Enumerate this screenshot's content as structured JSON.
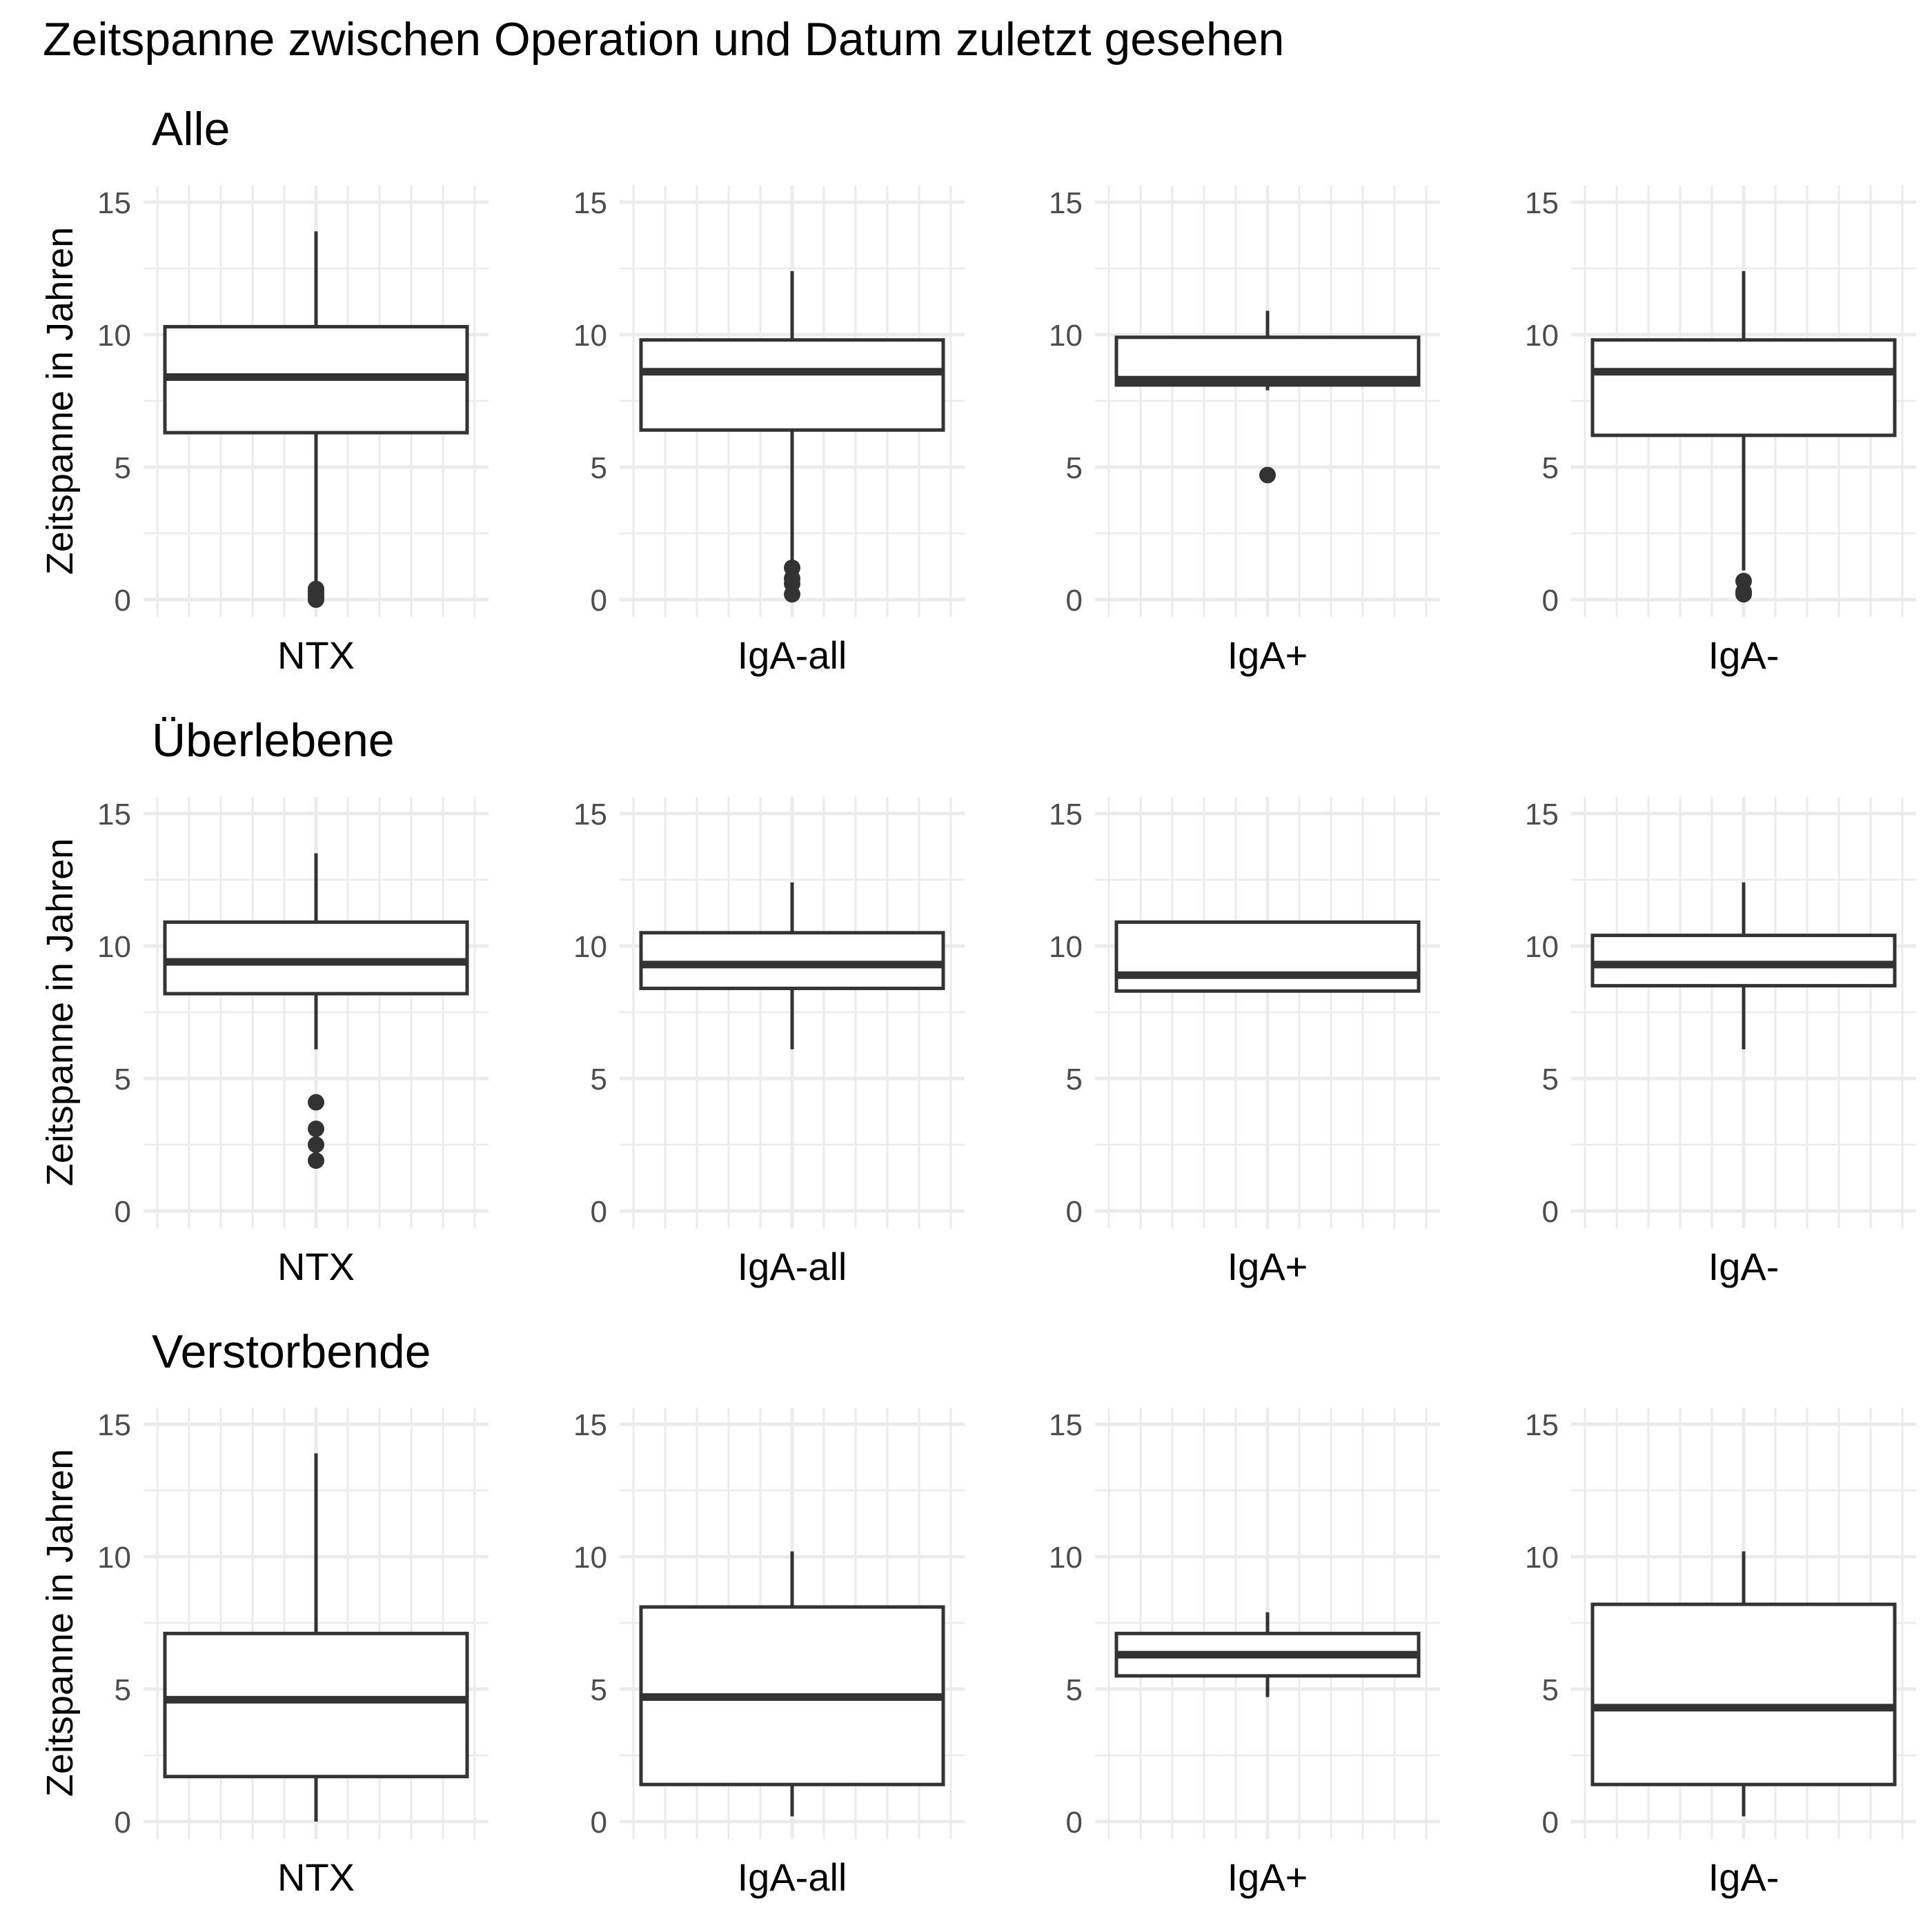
{
  "title": "Zeitspanne zwischen Operation und Datum zuletzt gesehen",
  "colors": {
    "grid": "#ebebeb",
    "stroke": "#333333",
    "background": "#ffffff"
  },
  "chart_data": {
    "type": "boxplot",
    "ylabel": "Zeitspanne in Jahren",
    "ylim": [
      0,
      15
    ],
    "yticks": [
      0,
      5,
      10,
      15
    ],
    "categories": [
      "NTX",
      "IgA-all",
      "IgA+",
      "IgA-"
    ],
    "rows": [
      {
        "title": "Alle",
        "panels": [
          {
            "category": "NTX",
            "whisker_low": 0.6,
            "q1": 6.3,
            "median": 8.4,
            "q3": 10.3,
            "whisker_high": 13.9,
            "outliers": [
              0.0,
              0.1,
              0.2,
              0.3,
              0.4
            ]
          },
          {
            "category": "IgA-all",
            "whisker_low": 1.4,
            "q1": 6.4,
            "median": 8.6,
            "q3": 9.8,
            "whisker_high": 12.4,
            "outliers": [
              0.2,
              0.6,
              0.8,
              1.2
            ]
          },
          {
            "category": "IgA+",
            "whisker_low": 7.9,
            "q1": 8.1,
            "median": 8.3,
            "q3": 9.9,
            "whisker_high": 10.9,
            "outliers": [
              4.7
            ]
          },
          {
            "category": "IgA-",
            "whisker_low": 1.1,
            "q1": 6.2,
            "median": 8.6,
            "q3": 9.8,
            "whisker_high": 12.4,
            "outliers": [
              0.2,
              0.3,
              0.7
            ]
          }
        ]
      },
      {
        "title": "Überlebene",
        "panels": [
          {
            "category": "NTX",
            "whisker_low": 6.1,
            "q1": 8.2,
            "median": 9.4,
            "q3": 10.9,
            "whisker_high": 13.5,
            "outliers": [
              1.9,
              2.5,
              3.1,
              4.1
            ]
          },
          {
            "category": "IgA-all",
            "whisker_low": 6.1,
            "q1": 8.4,
            "median": 9.3,
            "q3": 10.5,
            "whisker_high": 12.4,
            "outliers": []
          },
          {
            "category": "IgA+",
            "whisker_low": 8.3,
            "q1": 8.3,
            "median": 8.9,
            "q3": 10.9,
            "whisker_high": 10.9,
            "outliers": []
          },
          {
            "category": "IgA-",
            "whisker_low": 6.1,
            "q1": 8.5,
            "median": 9.3,
            "q3": 10.4,
            "whisker_high": 12.4,
            "outliers": []
          }
        ]
      },
      {
        "title": "Verstorbende",
        "panels": [
          {
            "category": "NTX",
            "whisker_low": 0.0,
            "q1": 1.7,
            "median": 4.6,
            "q3": 7.1,
            "whisker_high": 13.9,
            "outliers": []
          },
          {
            "category": "IgA-all",
            "whisker_low": 0.2,
            "q1": 1.4,
            "median": 4.7,
            "q3": 8.1,
            "whisker_high": 10.2,
            "outliers": []
          },
          {
            "category": "IgA+",
            "whisker_low": 4.7,
            "q1": 5.5,
            "median": 6.3,
            "q3": 7.1,
            "whisker_high": 7.9,
            "outliers": []
          },
          {
            "category": "IgA-",
            "whisker_low": 0.2,
            "q1": 1.4,
            "median": 4.3,
            "q3": 8.2,
            "whisker_high": 10.2,
            "outliers": []
          }
        ]
      }
    ]
  }
}
